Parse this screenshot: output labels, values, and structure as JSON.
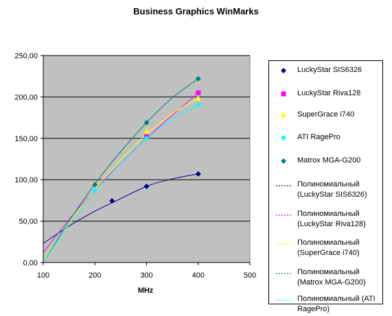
{
  "chart_data": {
    "type": "scatter",
    "title": "Business Graphics WinMarks",
    "xlabel": "MHz",
    "ylabel": "",
    "xlim": [
      100,
      500
    ],
    "ylim": [
      0,
      250
    ],
    "xticks": [
      "100",
      "200",
      "300",
      "400",
      "500"
    ],
    "yticks": [
      "0,00",
      "50,00",
      "100,00",
      "150,00",
      "200,00",
      "250,00"
    ],
    "grid": "horizontal",
    "legend_position": "right",
    "plot_background": "#c0c0c0",
    "series": [
      {
        "name": "LuckyStar SIS6326",
        "marker": "diamond",
        "color": "#000080",
        "x": [
          233,
          300,
          400
        ],
        "y": [
          74.5,
          92,
          107
        ]
      },
      {
        "name": "LuckyStar Riva128",
        "marker": "square",
        "color": "#ff00ff",
        "x": [
          300,
          400
        ],
        "y": [
          152,
          205
        ]
      },
      {
        "name": "SuperGrace i740",
        "marker": "triangle",
        "color": "#ffff00",
        "x": [
          300,
          400
        ],
        "y": [
          158,
          198
        ]
      },
      {
        "name": "ATI RagePro",
        "marker": "diamond",
        "color": "#00ffff",
        "x": [
          200,
          300,
          400
        ],
        "y": [
          87,
          150,
          190
        ]
      },
      {
        "name": "Matrox MGA-G200",
        "marker": "diamond",
        "color": "#008080",
        "x": [
          200,
          300,
          400
        ],
        "y": [
          94,
          169,
          222
        ]
      }
    ],
    "trendlines": [
      {
        "name": "Полиномиальный (LuckyStar SIS6326)",
        "color": "#000080",
        "x": [
          100,
          150,
          200,
          233,
          300,
          350,
          400
        ],
        "y": [
          23,
          44,
          62,
          72,
          92,
          101,
          107
        ]
      },
      {
        "name": "Полиномиальный (LuckyStar Riva128)",
        "color": "#ff00ff",
        "x": [
          100,
          150,
          200,
          250,
          300,
          350,
          400
        ],
        "y": [
          12,
          52,
          88,
          120,
          150,
          178,
          205
        ]
      },
      {
        "name": "Полиномиальный (SuperGrace i740)",
        "color": "#ffff00",
        "x": [
          100,
          150,
          200,
          250,
          300,
          350,
          400
        ],
        "y": [
          3,
          48,
          88,
          124,
          155,
          180,
          198
        ]
      },
      {
        "name": "Полиномиальный (Matrox MGA-G200)",
        "color": "#008080",
        "x": [
          100,
          150,
          200,
          250,
          300,
          350,
          400
        ],
        "y": [
          0,
          50,
          95,
          134,
          169,
          199,
          222
        ]
      },
      {
        "name": "Полиномиальный (ATI RagePro)",
        "color": "#00ffff",
        "x": [
          100,
          150,
          200,
          250,
          300,
          350,
          400
        ],
        "y": [
          0,
          46,
          85,
          120,
          150,
          173,
          190
        ]
      }
    ]
  },
  "legend": {
    "items": [
      {
        "label_lines": [
          "LuckyStar SIS6326"
        ],
        "kind": "marker",
        "series": 0
      },
      {
        "label_lines": [
          "LuckyStar Riva128"
        ],
        "kind": "marker",
        "series": 1
      },
      {
        "label_lines": [
          "SuperGrace i740"
        ],
        "kind": "marker",
        "series": 2
      },
      {
        "label_lines": [
          "ATI RagePro"
        ],
        "kind": "marker",
        "series": 3
      },
      {
        "label_lines": [
          "Matrox MGA-G200"
        ],
        "kind": "marker",
        "series": 4
      },
      {
        "label_lines": [
          "Полиномиальный",
          "(LuckyStar SIS6326)"
        ],
        "kind": "line",
        "trend": 0
      },
      {
        "label_lines": [
          "Полиномиальный",
          "(LuckyStar Riva128)"
        ],
        "kind": "line",
        "trend": 1
      },
      {
        "label_lines": [
          "Полиномиальный",
          "(SuperGrace i740)"
        ],
        "kind": "line",
        "trend": 2
      },
      {
        "label_lines": [
          "Полиномиальный",
          "(Matrox MGA-G200)"
        ],
        "kind": "line",
        "trend": 3
      },
      {
        "label_lines": [
          "Полиномиальный (ATI",
          "RagePro)"
        ],
        "kind": "line",
        "trend": 4
      }
    ]
  }
}
